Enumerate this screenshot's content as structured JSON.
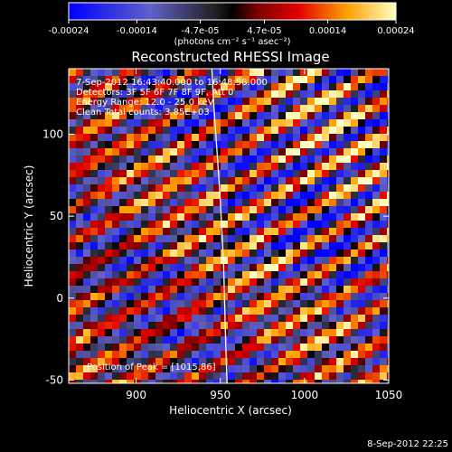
{
  "chart_data": {
    "type": "heatmap",
    "title": "Reconstructed RHESSI Image",
    "xlabel": "Heliocentric X (arcsec)",
    "ylabel": "Heliocentric Y (arcsec)",
    "xlim": [
      860,
      1050
    ],
    "ylim": [
      -52,
      140
    ],
    "x_ticks": [
      "900",
      "950",
      "1000",
      "1050"
    ],
    "x_tick_values": [
      900,
      950,
      1000,
      1050
    ],
    "y_ticks": [
      "-50",
      "0",
      "50",
      "100"
    ],
    "y_tick_values": [
      -50,
      0,
      50,
      100
    ],
    "colorbar": {
      "ticks": [
        "-0.00024",
        "-0.00014",
        "-4.7e-05",
        "4.7e-05",
        "0.00014",
        "0.00024"
      ],
      "tick_values": [
        -0.00024,
        -0.00014,
        -4.7e-05,
        4.7e-05,
        0.00014,
        0.00024
      ],
      "range": [
        -0.00024,
        0.00024
      ],
      "units_label": "(photons cm⁻² s⁻¹ asec⁻²)"
    },
    "annotations": [
      " 7-Sep-2012 16:43:40.000 to 16:48:58.000",
      "Detectors: 3F 5F 6F 7F 8F 9F, Att 0",
      "Energy Range: 12.0 - 25.0 keV",
      "Clean    Total counts: 3.85E+03"
    ],
    "peak_label": "Position of Peak = [1015,86]",
    "peak_position": [
      1015,
      86
    ],
    "limb_curve": [
      [
        945,
        140
      ],
      [
        946,
        120
      ],
      [
        948,
        90
      ],
      [
        950,
        60
      ],
      [
        952,
        20
      ],
      [
        953,
        -20
      ],
      [
        954,
        -52
      ]
    ],
    "stripe_pattern": {
      "orientation_deg": 30,
      "period_arcsec": 18,
      "peak_value": 0.00024,
      "min_value": -0.00024
    }
  },
  "footer": {
    "timestamp": "8-Sep-2012 22:25"
  }
}
